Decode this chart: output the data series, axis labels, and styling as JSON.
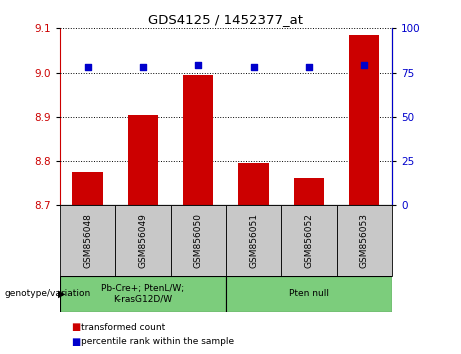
{
  "title": "GDS4125 / 1452377_at",
  "samples": [
    "GSM856048",
    "GSM856049",
    "GSM856050",
    "GSM856051",
    "GSM856052",
    "GSM856053"
  ],
  "bar_values": [
    8.775,
    8.905,
    8.995,
    8.795,
    8.762,
    9.085
  ],
  "percentile_values": [
    78,
    78,
    79,
    78,
    78,
    79
  ],
  "ylim_left": [
    8.7,
    9.1
  ],
  "ylim_right": [
    0,
    100
  ],
  "yticks_left": [
    8.7,
    8.8,
    8.9,
    9.0,
    9.1
  ],
  "yticks_right": [
    0,
    25,
    50,
    75,
    100
  ],
  "bar_color": "#cc0000",
  "percentile_color": "#0000cc",
  "group1_label": "Pb-Cre+; PtenL/W;\nK-rasG12D/W",
  "group2_label": "Pten null",
  "group1_indices": [
    0,
    1,
    2
  ],
  "group2_indices": [
    3,
    4,
    5
  ],
  "group_bg_color": "#7ccd7c",
  "sample_bg_color": "#c8c8c8",
  "legend_bar_label": "transformed count",
  "legend_pct_label": "percentile rank within the sample",
  "genotype_label": "genotype/variation"
}
